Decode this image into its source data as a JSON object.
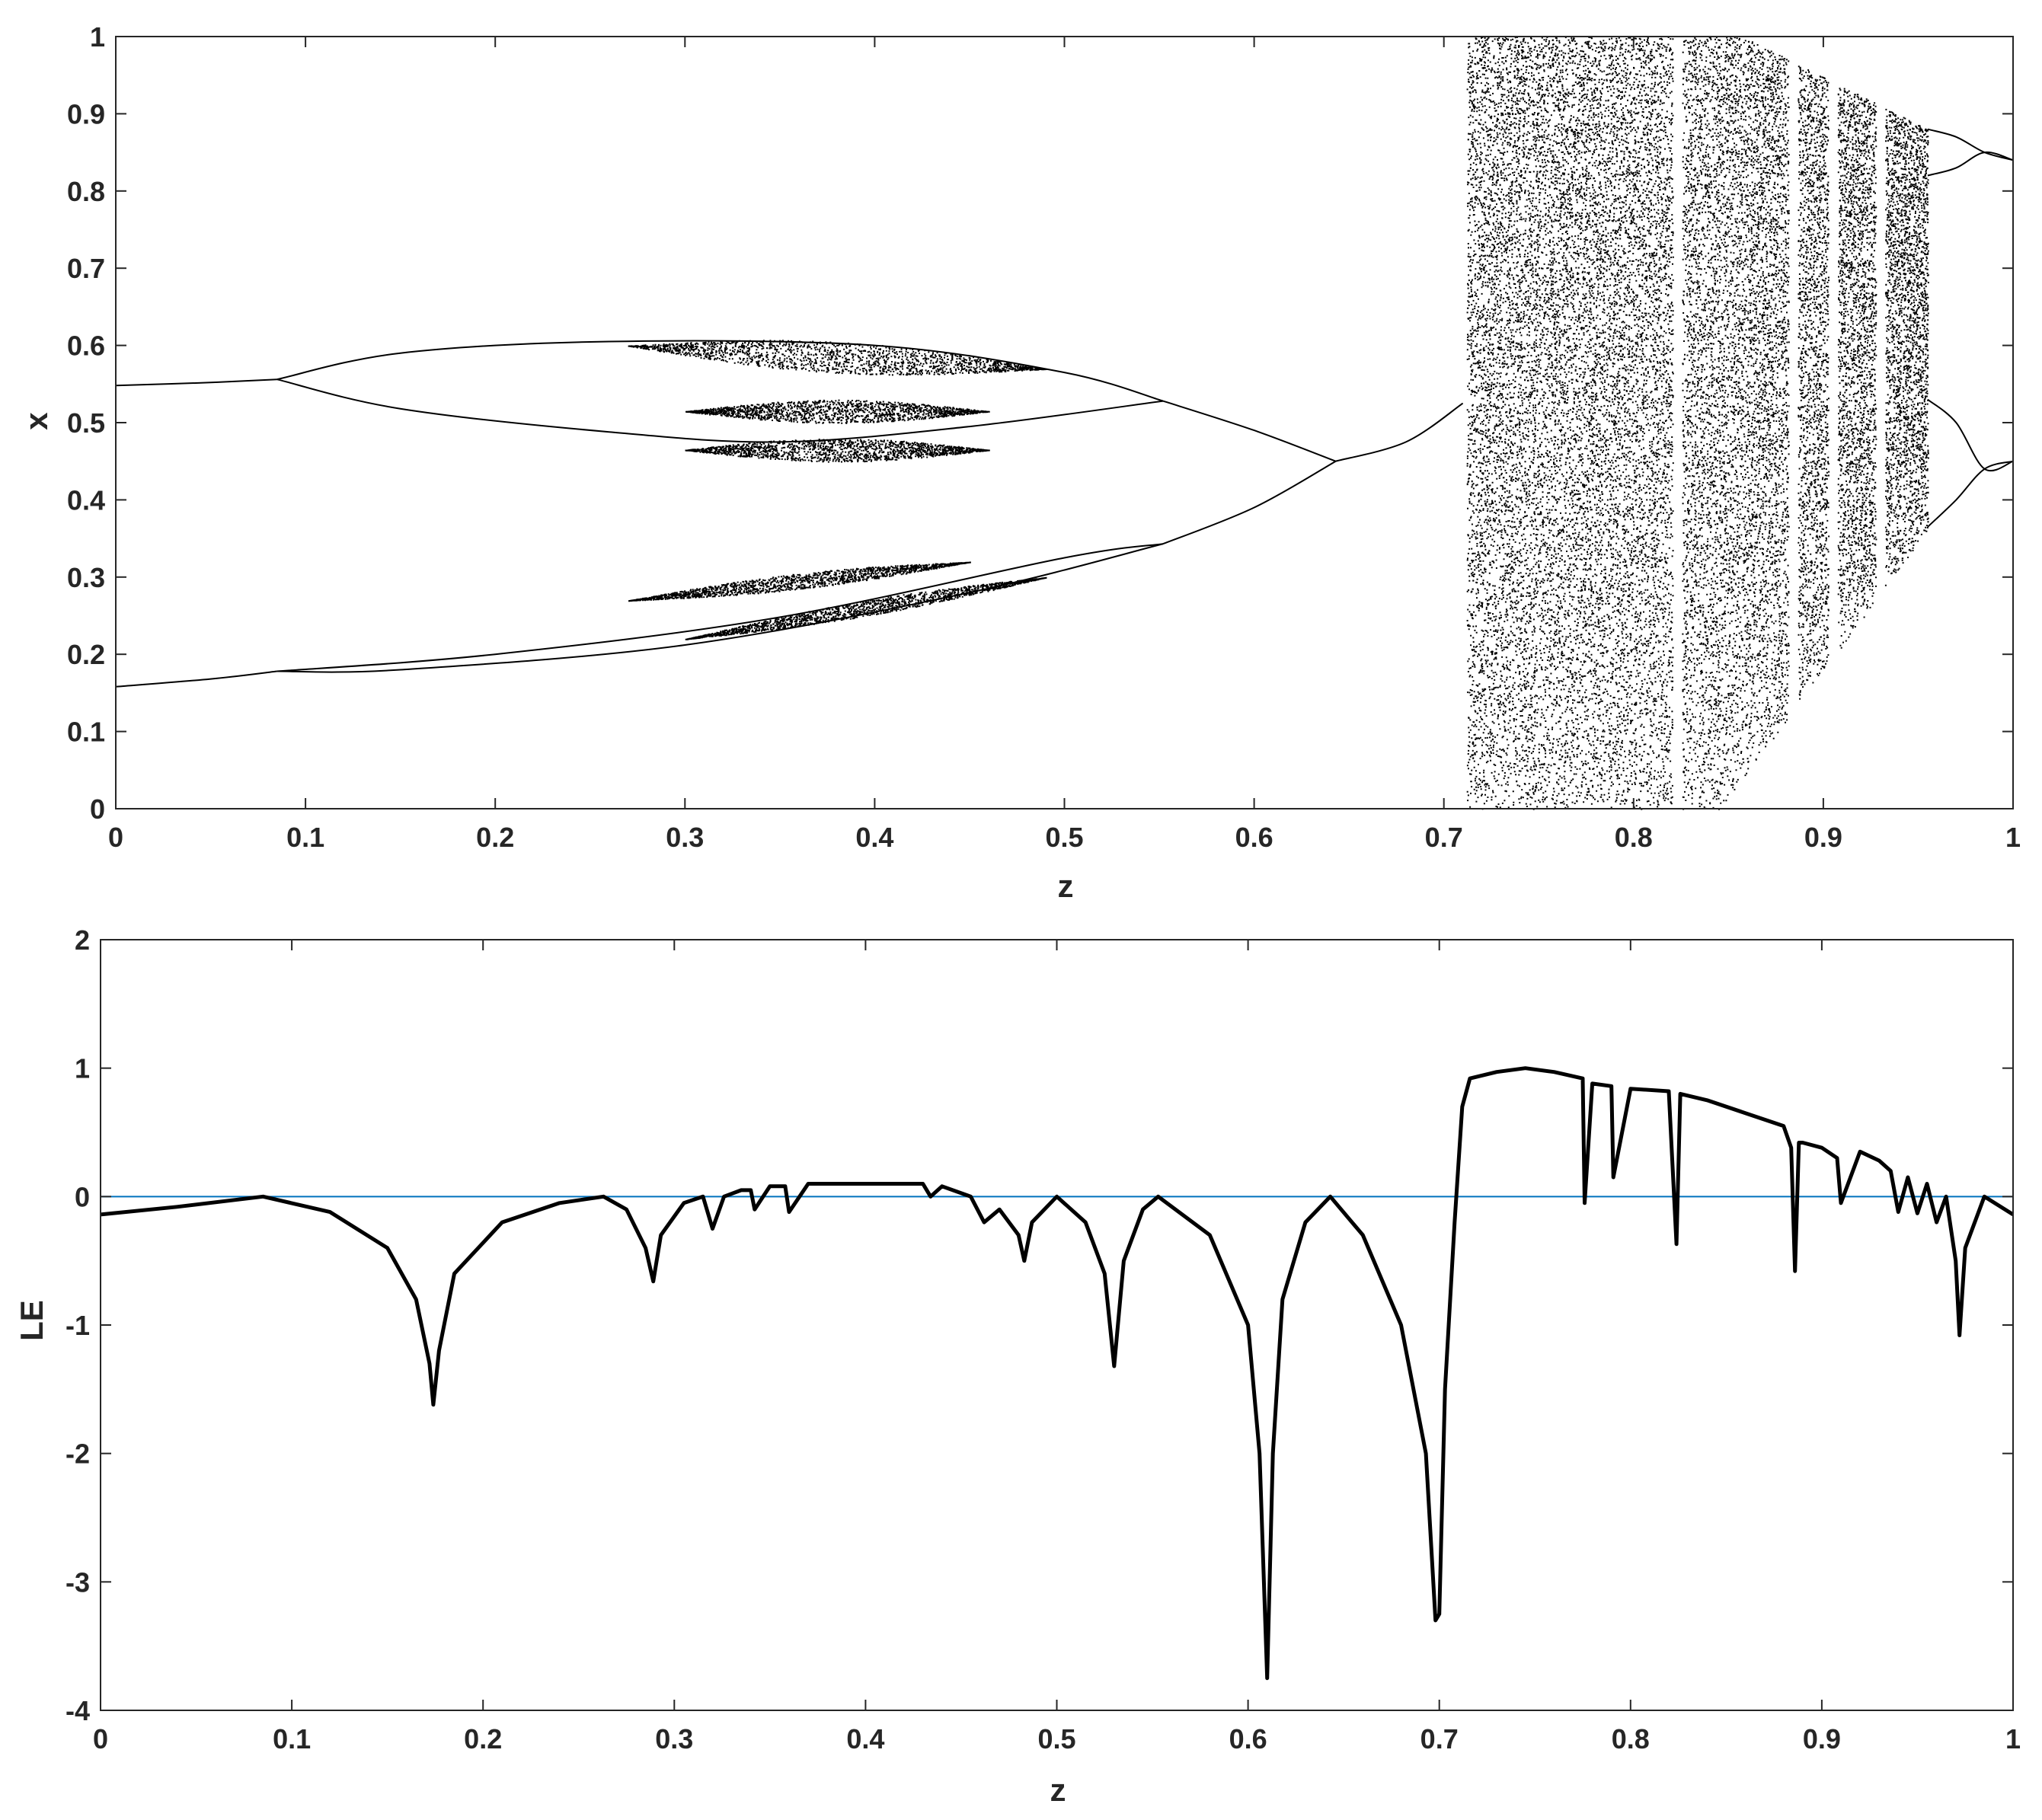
{
  "chart_data": [
    {
      "type": "scatter",
      "xlabel": "z",
      "ylabel": "x",
      "xlim": [
        0,
        1
      ],
      "ylim": [
        0,
        1
      ],
      "xticks": [
        "0",
        "0.1",
        "0.2",
        "0.3",
        "0.4",
        "0.5",
        "0.6",
        "0.7",
        "0.8",
        "0.9",
        "1"
      ],
      "yticks": [
        "0",
        "0.1",
        "0.2",
        "0.3",
        "0.4",
        "0.5",
        "0.6",
        "0.7",
        "0.8",
        "0.9",
        "1"
      ],
      "grid": false,
      "colors": {
        "points": "#000000",
        "axes": "#262626"
      },
      "branches": [
        {
          "x": [
            0,
            0.05,
            0.085
          ],
          "y": [
            0.548,
            0.552,
            0.556
          ]
        },
        {
          "x": [
            0,
            0.05,
            0.085
          ],
          "y": [
            0.158,
            0.168,
            0.178
          ]
        },
        {
          "x": [
            0.085,
            0.15,
            0.26,
            0.4,
            0.5,
            0.552
          ],
          "y": [
            0.556,
            0.59,
            0.605,
            0.6,
            0.565,
            0.528
          ]
        },
        {
          "x": [
            0.085,
            0.15,
            0.26,
            0.35,
            0.45,
            0.552
          ],
          "y": [
            0.556,
            0.518,
            0.488,
            0.475,
            0.495,
            0.528
          ]
        },
        {
          "x": [
            0.085,
            0.15,
            0.3,
            0.45,
            0.552
          ],
          "y": [
            0.178,
            0.18,
            0.212,
            0.28,
            0.343
          ]
        },
        {
          "x": [
            0.085,
            0.2,
            0.35,
            0.5,
            0.552
          ],
          "y": [
            0.178,
            0.2,
            0.248,
            0.325,
            0.343
          ]
        },
        {
          "x": [
            0.552,
            0.6,
            0.643
          ],
          "y": [
            0.528,
            0.49,
            0.45
          ]
        },
        {
          "x": [
            0.552,
            0.6,
            0.643
          ],
          "y": [
            0.343,
            0.39,
            0.45
          ]
        },
        {
          "x": [
            0.643,
            0.68,
            0.71
          ],
          "y": [
            0.45,
            0.475,
            0.525
          ]
        },
        {
          "x": [
            0.955,
            0.97,
            0.985,
            1.0
          ],
          "y": [
            0.88,
            0.87,
            0.85,
            0.84
          ]
        },
        {
          "x": [
            0.955,
            0.97,
            0.985,
            1.0
          ],
          "y": [
            0.82,
            0.83,
            0.85,
            0.84
          ]
        },
        {
          "x": [
            0.955,
            0.97,
            0.985,
            1.0
          ],
          "y": [
            0.53,
            0.5,
            0.44,
            0.45
          ]
        },
        {
          "x": [
            0.955,
            0.97,
            0.985,
            1.0
          ],
          "y": [
            0.365,
            0.4,
            0.44,
            0.45
          ]
        }
      ],
      "chaotic_bands": [
        {
          "x": [
            0.27,
            0.49
          ],
          "y_center": [
            0.6,
            0.57
          ],
          "spread": 0.02
        },
        {
          "x": [
            0.3,
            0.46
          ],
          "y_center": [
            0.515,
            0.515
          ],
          "spread": 0.015
        },
        {
          "x": [
            0.3,
            0.46
          ],
          "y_center": [
            0.465,
            0.465
          ],
          "spread": 0.015
        },
        {
          "x": [
            0.27,
            0.45
          ],
          "y_center": [
            0.27,
            0.32
          ],
          "spread": 0.01
        },
        {
          "x": [
            0.3,
            0.49
          ],
          "y_center": [
            0.22,
            0.3
          ],
          "spread": 0.01
        }
      ],
      "chaos_region": {
        "x": [
          0.712,
          0.955
        ],
        "y_min": 0,
        "y_max": 1
      },
      "windows": [
        0.823,
        0.884,
        0.905,
        0.93
      ]
    },
    {
      "type": "line",
      "xlabel": "z",
      "ylabel": "LE",
      "xlim": [
        0,
        1
      ],
      "ylim": [
        -4,
        2
      ],
      "xticks": [
        "0",
        "0.1",
        "0.2",
        "0.3",
        "0.4",
        "0.5",
        "0.6",
        "0.7",
        "0.8",
        "0.9",
        "1"
      ],
      "yticks": [
        "-4",
        "-3",
        "-2",
        "-1",
        "0",
        "1",
        "2"
      ],
      "grid": false,
      "colors": {
        "series": "#000000",
        "zero_line": "#0072BD",
        "axes": "#262626"
      },
      "reference_line": {
        "y": 0
      },
      "series": [
        {
          "x": [
            0,
            0.04,
            0.085,
            0.12,
            0.15,
            0.165,
            0.172,
            0.174,
            0.177,
            0.185,
            0.21,
            0.24,
            0.263,
            0.275,
            0.285,
            0.289,
            0.293,
            0.305,
            0.315,
            0.32,
            0.326,
            0.335,
            0.34,
            0.342,
            0.35,
            0.358,
            0.36,
            0.37,
            0.4,
            0.43,
            0.434,
            0.44,
            0.455,
            0.462,
            0.47,
            0.48,
            0.483,
            0.487,
            0.5,
            0.515,
            0.525,
            0.53,
            0.535,
            0.545,
            0.553,
            0.58,
            0.6,
            0.606,
            0.61,
            0.613,
            0.618,
            0.63,
            0.643,
            0.66,
            0.68,
            0.693,
            0.698,
            0.7,
            0.703,
            0.708,
            0.712,
            0.716,
            0.73,
            0.745,
            0.76,
            0.775,
            0.776,
            0.78,
            0.79,
            0.791,
            0.8,
            0.82,
            0.824,
            0.826,
            0.84,
            0.86,
            0.88,
            0.884,
            0.886,
            0.888,
            0.89,
            0.9,
            0.908,
            0.91,
            0.92,
            0.93,
            0.936,
            0.94,
            0.945,
            0.95,
            0.955,
            0.96,
            0.965,
            0.97,
            0.972,
            0.975,
            0.985,
            1.0
          ],
          "y": [
            -0.14,
            -0.08,
            0.0,
            -0.12,
            -0.4,
            -0.8,
            -1.3,
            -1.62,
            -1.2,
            -0.6,
            -0.2,
            -0.05,
            0.0,
            -0.1,
            -0.4,
            -0.66,
            -0.3,
            -0.05,
            0.0,
            -0.25,
            0.0,
            0.05,
            0.05,
            -0.1,
            0.08,
            0.08,
            -0.12,
            0.1,
            0.1,
            0.1,
            0.0,
            0.08,
            0.0,
            -0.2,
            -0.1,
            -0.3,
            -0.5,
            -0.2,
            0.0,
            -0.2,
            -0.6,
            -1.32,
            -0.5,
            -0.1,
            0.0,
            -0.3,
            -1.0,
            -2.0,
            -3.75,
            -2.0,
            -0.8,
            -0.2,
            0.0,
            -0.3,
            -1.0,
            -2.0,
            -3.3,
            -3.25,
            -1.5,
            -0.2,
            0.7,
            0.92,
            0.97,
            1.0,
            0.97,
            0.92,
            -0.05,
            0.88,
            0.86,
            0.15,
            0.84,
            0.82,
            -0.37,
            0.8,
            0.75,
            0.65,
            0.55,
            0.38,
            -0.58,
            0.42,
            0.42,
            0.38,
            0.3,
            -0.05,
            0.35,
            0.28,
            0.2,
            -0.12,
            0.15,
            -0.13,
            0.1,
            -0.2,
            0.0,
            -0.5,
            -1.08,
            -0.4,
            0.0,
            -0.14
          ]
        }
      ]
    }
  ]
}
